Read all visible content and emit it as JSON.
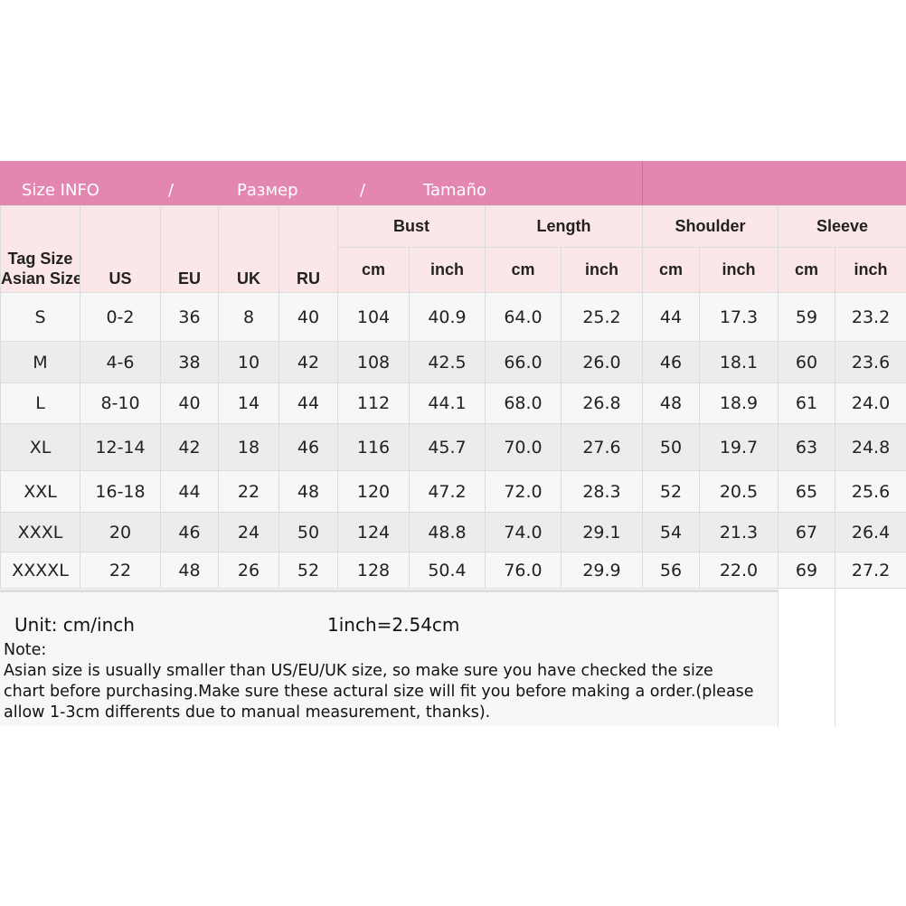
{
  "banner": {
    "title": "Size INFO",
    "sep": "/",
    "ru": "Размер",
    "es": "Tamaño",
    "color": "#e487b0"
  },
  "header": {
    "tag1": "Tag Size",
    "tag2": "Asian Size",
    "us": "US",
    "eu": "EU",
    "uk": "UK",
    "ru": "RU",
    "groups": [
      "Bust",
      "Length",
      "Shoulder",
      "Sleeve"
    ],
    "cm": "cm",
    "inch": "inch"
  },
  "rows": [
    [
      "S",
      "0-2",
      "36",
      "8",
      "40",
      "104",
      "40.9",
      "64.0",
      "25.2",
      "44",
      "17.3",
      "59",
      "23.2"
    ],
    [
      "M",
      "4-6",
      "38",
      "10",
      "42",
      "108",
      "42.5",
      "66.0",
      "26.0",
      "46",
      "18.1",
      "60",
      "23.6"
    ],
    [
      "L",
      "8-10",
      "40",
      "14",
      "44",
      "112",
      "44.1",
      "68.0",
      "26.8",
      "48",
      "18.9",
      "61",
      "24.0"
    ],
    [
      "XL",
      "12-14",
      "42",
      "18",
      "46",
      "116",
      "45.7",
      "70.0",
      "27.6",
      "50",
      "19.7",
      "63",
      "24.8"
    ],
    [
      "XXL",
      "16-18",
      "44",
      "22",
      "48",
      "120",
      "47.2",
      "72.0",
      "28.3",
      "52",
      "20.5",
      "65",
      "25.6"
    ],
    [
      "XXXL",
      "20",
      "46",
      "24",
      "50",
      "124",
      "48.8",
      "74.0",
      "29.1",
      "54",
      "21.3",
      "67",
      "26.4"
    ],
    [
      "XXXXL",
      "22",
      "48",
      "26",
      "52",
      "128",
      "50.4",
      "76.0",
      "29.9",
      "56",
      "22.0",
      "69",
      "27.2"
    ]
  ],
  "footer": {
    "unit": "Unit: cm/inch",
    "conversion": "1inch=2.54cm",
    "note_title": "Note:",
    "note_lines": [
      "Asian size is usually smaller than US/EU/UK size, so make sure you have checked the size",
      "chart before purchasing.Make sure these actural size will fit you before making a order.(please",
      "allow 1-3cm differents due to manual measurement, thanks)."
    ]
  }
}
